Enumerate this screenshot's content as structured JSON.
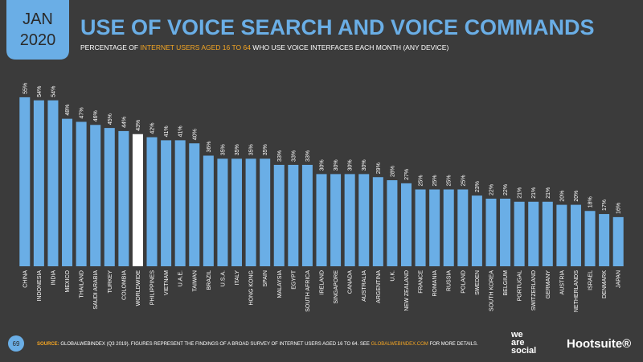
{
  "header": {
    "date_line1": "JAN",
    "date_line2": "2020",
    "title": "USE OF VOICE SEARCH AND VOICE COMMANDS",
    "subtitle_parts": [
      "PERCENTAGE OF ",
      "INTERNET USERS AGED 16 TO 64",
      " WHO USE VOICE INTERFACES EACH MONTH (ANY DEVICE)"
    ]
  },
  "chart_data": {
    "type": "bar",
    "color": "#6aaee6",
    "highlight_color": "#ffffff",
    "highlight_category": "WORLDWIDE",
    "categories": [
      "CHINA",
      "INDONESIA",
      "INDIA",
      "MEXICO",
      "THAILAND",
      "SAUDI ARABIA",
      "TURKEY",
      "COLOMBIA",
      "WORLDWIDE",
      "PHILIPPINES",
      "VIETNAM",
      "U.A.E.",
      "TAIWAN",
      "BRAZIL",
      "U.S.A.",
      "ITALY",
      "HONG KONG",
      "SPAIN",
      "MALAYSIA",
      "EGYPT",
      "SOUTH AFRICA",
      "IRELAND",
      "SINGAPORE",
      "CANADA",
      "AUSTRALIA",
      "ARGENTINA",
      "U.K.",
      "NEW ZEALAND",
      "FRANCE",
      "ROMANIA",
      "RUSSIA",
      "POLAND",
      "SWEDEN",
      "SOUTH KOREA",
      "BELGIUM",
      "PORTUGAL",
      "SWITZERLAND",
      "GERMANY",
      "AUSTRIA",
      "NETHERLANDS",
      "ISRAEL",
      "DENMARK",
      "JAPAN"
    ],
    "values": [
      55,
      54,
      54,
      48,
      47,
      46,
      45,
      44,
      43,
      42,
      41,
      41,
      40,
      36,
      35,
      35,
      35,
      35,
      33,
      33,
      33,
      30,
      30,
      30,
      30,
      29,
      28,
      27,
      25,
      25,
      25,
      25,
      23,
      22,
      22,
      21,
      21,
      21,
      20,
      20,
      18,
      17,
      16
    ],
    "value_labels": [
      "55%",
      "54%",
      "54%",
      "48%",
      "47%",
      "46%",
      "45%",
      "44%",
      "43%",
      "42%",
      "41%",
      "41%",
      "40%",
      "36%",
      "35%",
      "35%",
      "35%",
      "35%",
      "33%",
      "33%",
      "33%",
      "30%",
      "30%",
      "30%",
      "30%",
      "29%",
      "28%",
      "27%",
      "25%",
      "25%",
      "25%",
      "25%",
      "23%",
      "22%",
      "22%",
      "21%",
      "21%",
      "21%",
      "20%",
      "20%",
      "18%",
      "17%",
      "16%"
    ]
  },
  "footer": {
    "page": "69",
    "source_parts": [
      "SOURCE:",
      " GLOBALWEBINDEX (Q3 2019). FIGURES REPRESENT THE FINDINGS OF A BROAD SURVEY OF INTERNET USERS AGED 16 TO 64. SEE ",
      "GLOBALWEBINDEX.COM",
      " FOR MORE DETAILS."
    ],
    "logo1_parts": [
      "we",
      "are",
      "social"
    ],
    "logo2": "Hootsuite®"
  }
}
